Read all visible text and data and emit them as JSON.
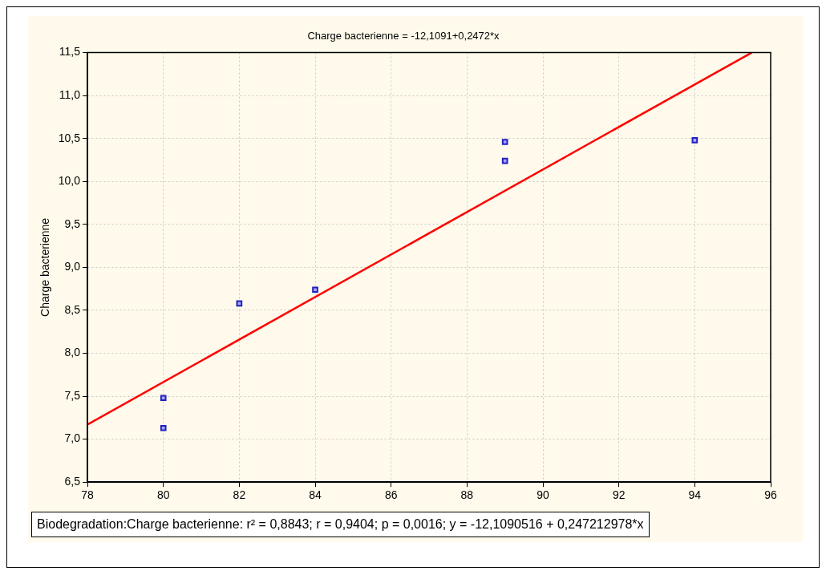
{
  "chart_data": {
    "type": "scatter",
    "title": "Charge bacterienne = -12,1091+0,2472*x",
    "ylabel": "Charge bacterienne",
    "annotations": [
      "Biodegradation:Charge bacterienne:  r² = 0,8843;  r = 0,9404; p = 0,0016;  y = -12,1090516 + 0,247212978*x"
    ],
    "series": [
      {
        "color": "#2020c0",
        "marker": "square",
        "x": [
          80,
          80,
          82,
          84,
          89,
          89,
          94
        ],
        "values": [
          7.48,
          7.13,
          8.58,
          8.74,
          10.46,
          10.24,
          10.48
        ]
      },
      {
        "type": "line",
        "color": "#ff0000",
        "x": [
          78,
          95.5
        ],
        "values": [
          7.17,
          11.5
        ]
      }
    ],
    "xlim": [
      78,
      96
    ],
    "xticks": [
      78,
      80,
      82,
      84,
      86,
      88,
      90,
      92,
      94,
      96
    ],
    "ylim": [
      6.5,
      11.5
    ],
    "yticks": [
      {
        "value": 6.5,
        "label": "6,5"
      },
      {
        "value": 7,
        "label": "7,0"
      },
      {
        "value": 7.5,
        "label": "7,5"
      },
      {
        "value": 8,
        "label": "8,0"
      },
      {
        "value": 8.5,
        "label": "8,5"
      },
      {
        "value": 9,
        "label": "9,0"
      },
      {
        "value": 9.5,
        "label": "9,5"
      },
      {
        "value": 10,
        "label": "10,0"
      },
      {
        "value": 10.5,
        "label": "10,5"
      },
      {
        "value": 11,
        "label": "11,0"
      },
      {
        "value": 11.5,
        "label": "11,5"
      }
    ],
    "grid": true,
    "legend": false
  }
}
